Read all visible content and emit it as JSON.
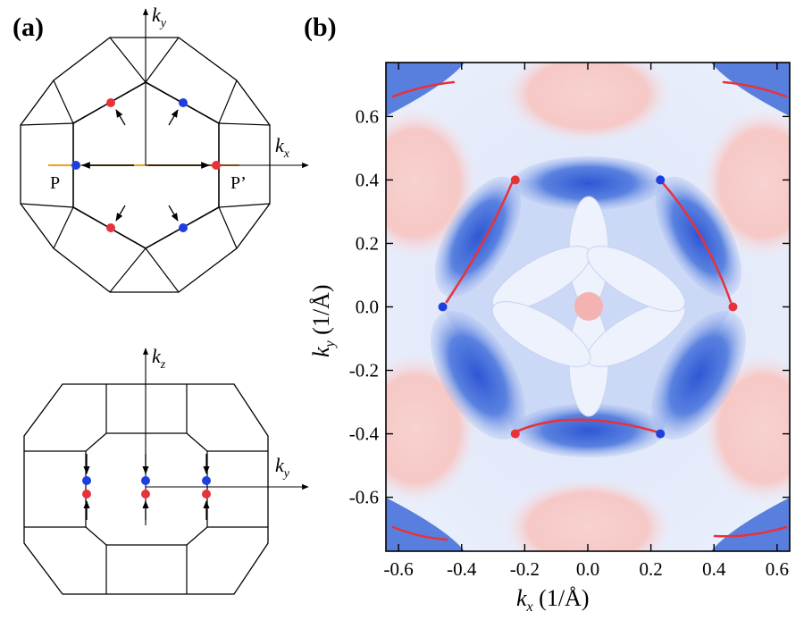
{
  "panel_a": {
    "label": "(a)",
    "top_view": {
      "axis_x": {
        "base": "k",
        "sub": "x"
      },
      "axis_y": {
        "base": "k",
        "sub": "y"
      },
      "point_left": "P",
      "point_right": "P’"
    },
    "side_view": {
      "axis_z": {
        "base": "k",
        "sub": "z"
      },
      "axis_y": {
        "base": "k",
        "sub": "y"
      }
    }
  },
  "panel_b": {
    "label": "(b)",
    "xlabel": {
      "base": "k",
      "sub": "x",
      "unit": " (1/Å)"
    },
    "ylabel": {
      "base": "k",
      "sub": "y",
      "unit": " (1/Å)"
    }
  },
  "colors": {
    "positive": "#e8323a",
    "negative": "#1d3fe0",
    "surface_high": "#f6c8c6",
    "surface_low": "#3f6bd8",
    "background": "#e9eefb",
    "axis_path": "#f0a020"
  },
  "chart_data": {
    "type": "heatmap",
    "xlim": [
      -0.64,
      0.64
    ],
    "ylim": [
      -0.77,
      0.77
    ],
    "xticks": [
      "-0.6",
      "-0.4",
      "-0.2",
      "0.0",
      "0.2",
      "0.4",
      "0.6"
    ],
    "xtick_values": [
      -0.6,
      -0.4,
      -0.2,
      0.0,
      0.2,
      0.4,
      0.6
    ],
    "yticks": [
      "0.6",
      "0.4",
      "0.2",
      "0.0",
      "-0.2",
      "-0.4",
      "-0.6"
    ],
    "ytick_values": [
      0.6,
      0.4,
      0.2,
      0.0,
      -0.2,
      -0.4,
      -0.6
    ],
    "points": [
      {
        "x": -0.23,
        "y": 0.4,
        "color": "red"
      },
      {
        "x": 0.23,
        "y": 0.4,
        "color": "blue"
      },
      {
        "x": -0.46,
        "y": 0.0,
        "color": "blue"
      },
      {
        "x": 0.46,
        "y": 0.0,
        "color": "red"
      },
      {
        "x": -0.23,
        "y": -0.4,
        "color": "red"
      },
      {
        "x": 0.23,
        "y": -0.4,
        "color": "blue"
      }
    ]
  }
}
